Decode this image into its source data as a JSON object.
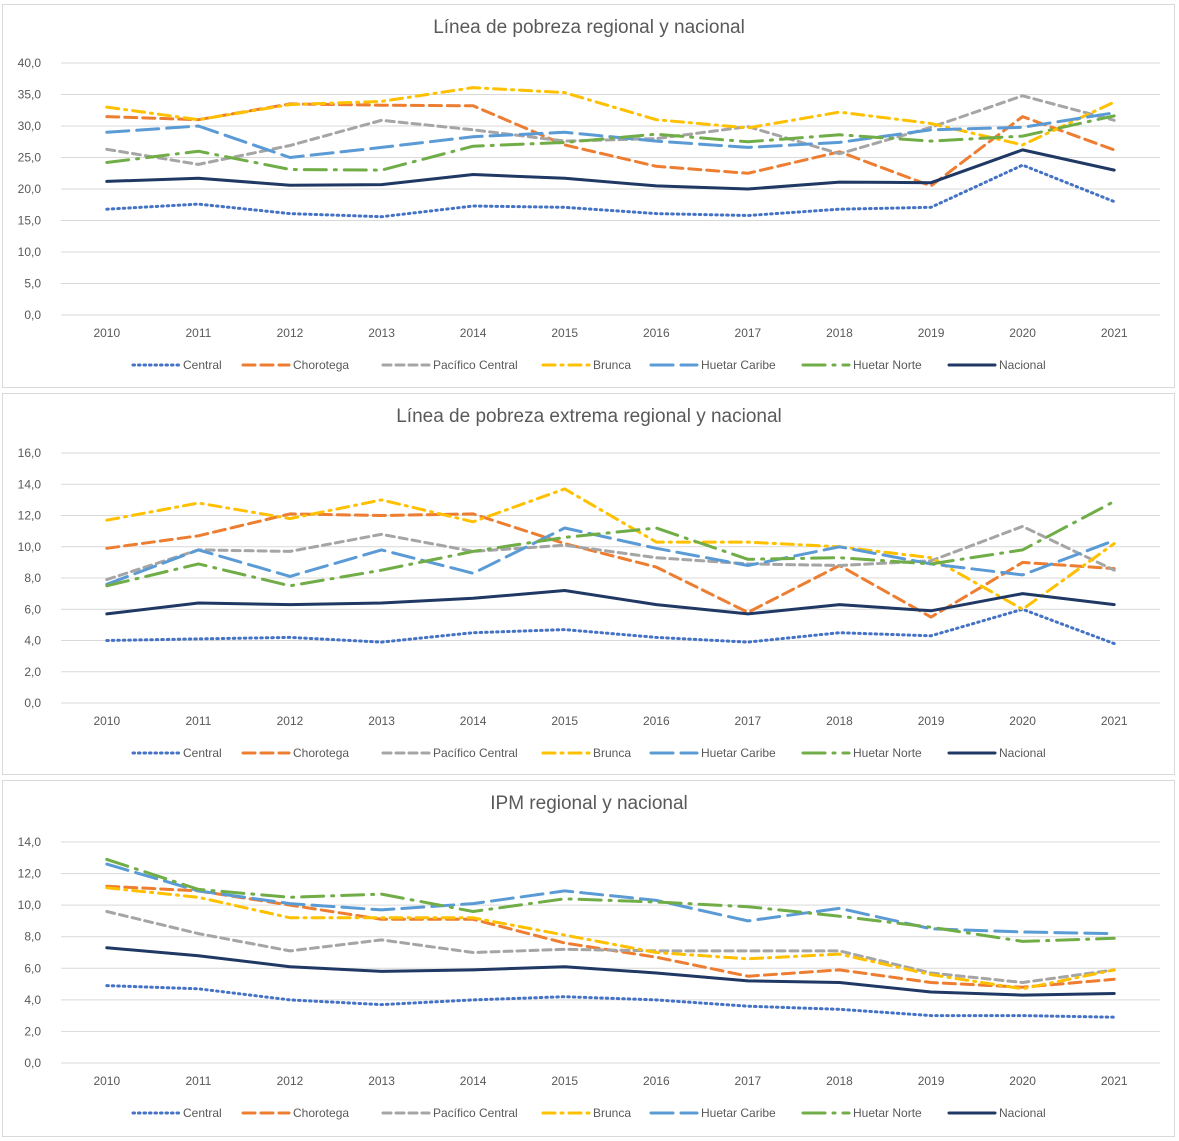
{
  "legend": [
    "Central",
    "Chorotega",
    "Pacífico Central",
    "Brunca",
    "Huetar Caribe",
    "Huetar Norte",
    "Nacional"
  ],
  "series_styles": {
    "Central": {
      "color": "#4472c4",
      "dash": "1.5,4",
      "width": 3
    },
    "Chorotega": {
      "color": "#ed7d31",
      "dash": "12,6",
      "width": 3
    },
    "Pacífico Central": {
      "color": "#a5a5a5",
      "dash": "8,5",
      "width": 3
    },
    "Brunca": {
      "color": "#ffc000",
      "dash": "12,6,2,6",
      "width": 3
    },
    "Huetar Caribe": {
      "color": "#5b9bd5",
      "dash": "22,8",
      "width": 3
    },
    "Huetar Norte": {
      "color": "#70ad47",
      "dash": "22,8,2,8",
      "width": 3
    },
    "Nacional": {
      "color": "#203864",
      "dash": "",
      "width": 3
    }
  },
  "chart_data": [
    {
      "type": "line",
      "title": "Línea de pobreza regional y nacional",
      "x": [
        "2010",
        "2011",
        "2012",
        "2013",
        "2014",
        "2015",
        "2016",
        "2017",
        "2018",
        "2019",
        "2020",
        "2021"
      ],
      "ylim": [
        0,
        40
      ],
      "yticks": [
        "0,0",
        "5,0",
        "10,0",
        "15,0",
        "20,0",
        "25,0",
        "30,0",
        "35,0",
        "40,0"
      ],
      "grid": true,
      "legend_position": "bottom",
      "series": [
        {
          "name": "Central",
          "values": [
            16.8,
            17.6,
            16.1,
            15.6,
            17.3,
            17.1,
            16.1,
            15.8,
            16.8,
            17.1,
            23.8,
            18.0
          ]
        },
        {
          "name": "Chorotega",
          "values": [
            31.5,
            31.0,
            33.5,
            33.3,
            33.2,
            27.0,
            23.6,
            22.5,
            25.9,
            20.5,
            31.5,
            26.2
          ]
        },
        {
          "name": "Pacífico Central",
          "values": [
            26.3,
            23.9,
            26.9,
            30.9,
            29.4,
            27.6,
            28.0,
            29.9,
            25.6,
            29.8,
            34.8,
            30.9
          ]
        },
        {
          "name": "Brunca",
          "values": [
            33.0,
            31.0,
            33.4,
            33.9,
            36.1,
            35.3,
            31.0,
            29.7,
            32.2,
            30.4,
            27.0,
            33.8
          ]
        },
        {
          "name": "Huetar Caribe",
          "values": [
            29.0,
            30.0,
            25.0,
            26.6,
            28.3,
            29.0,
            27.6,
            26.6,
            27.4,
            29.4,
            29.8,
            32.1
          ]
        },
        {
          "name": "Huetar Norte",
          "values": [
            24.2,
            26.0,
            23.1,
            23.0,
            26.8,
            27.4,
            28.7,
            27.5,
            28.6,
            27.6,
            28.4,
            31.6
          ]
        },
        {
          "name": "Nacional",
          "values": [
            21.2,
            21.7,
            20.6,
            20.7,
            22.3,
            21.7,
            20.5,
            20.0,
            21.1,
            21.0,
            26.2,
            23.0
          ]
        }
      ]
    },
    {
      "type": "line",
      "title": "Línea de pobreza extrema regional y nacional",
      "x": [
        "2010",
        "2011",
        "2012",
        "2013",
        "2014",
        "2015",
        "2016",
        "2017",
        "2018",
        "2019",
        "2020",
        "2021"
      ],
      "ylim": [
        0,
        16
      ],
      "yticks": [
        "0,0",
        "2,0",
        "4,0",
        "6,0",
        "8,0",
        "10,0",
        "12,0",
        "14,0",
        "16,0"
      ],
      "grid": true,
      "legend_position": "bottom",
      "series": [
        {
          "name": "Central",
          "values": [
            4.0,
            4.1,
            4.2,
            3.9,
            4.5,
            4.7,
            4.2,
            3.9,
            4.5,
            4.3,
            6.0,
            3.8
          ]
        },
        {
          "name": "Chorotega",
          "values": [
            9.9,
            10.7,
            12.1,
            12.0,
            12.1,
            10.2,
            8.7,
            5.8,
            8.8,
            5.5,
            9.0,
            8.6
          ]
        },
        {
          "name": "Pacífico Central",
          "values": [
            7.9,
            9.8,
            9.7,
            10.8,
            9.7,
            10.1,
            9.3,
            8.9,
            8.8,
            9.1,
            11.3,
            8.5
          ]
        },
        {
          "name": "Brunca",
          "values": [
            11.7,
            12.8,
            11.8,
            13.0,
            11.6,
            13.7,
            10.3,
            10.3,
            10.0,
            9.3,
            6.0,
            10.2
          ]
        },
        {
          "name": "Huetar Caribe",
          "values": [
            7.6,
            9.8,
            8.1,
            9.8,
            8.3,
            11.2,
            9.9,
            8.8,
            10.0,
            8.9,
            8.2,
            10.4
          ]
        },
        {
          "name": "Huetar Norte",
          "values": [
            7.5,
            8.9,
            7.5,
            8.5,
            9.7,
            10.6,
            11.2,
            9.2,
            9.3,
            8.9,
            9.8,
            12.9
          ]
        },
        {
          "name": "Nacional",
          "values": [
            5.7,
            6.4,
            6.3,
            6.4,
            6.7,
            7.2,
            6.3,
            5.7,
            6.3,
            5.9,
            7.0,
            6.3
          ]
        }
      ]
    },
    {
      "type": "line",
      "title": "IPM regional y nacional",
      "x": [
        "2010",
        "2011",
        "2012",
        "2013",
        "2014",
        "2015",
        "2016",
        "2017",
        "2018",
        "2019",
        "2020",
        "2021"
      ],
      "ylim": [
        0,
        14
      ],
      "yticks": [
        "0,0",
        "2,0",
        "4,0",
        "6,0",
        "8,0",
        "10,0",
        "12,0",
        "14,0"
      ],
      "grid": true,
      "legend_position": "bottom",
      "series": [
        {
          "name": "Central",
          "values": [
            4.9,
            4.7,
            4.0,
            3.7,
            4.0,
            4.2,
            4.0,
            3.6,
            3.4,
            3.0,
            3.0,
            2.9
          ]
        },
        {
          "name": "Chorotega",
          "values": [
            11.2,
            10.9,
            10.0,
            9.1,
            9.1,
            7.6,
            6.7,
            5.5,
            5.9,
            5.1,
            4.8,
            5.3
          ]
        },
        {
          "name": "Pacífico Central",
          "values": [
            9.6,
            8.2,
            7.1,
            7.8,
            7.0,
            7.2,
            7.1,
            7.1,
            7.1,
            5.7,
            5.1,
            5.9
          ]
        },
        {
          "name": "Brunca",
          "values": [
            11.1,
            10.5,
            9.2,
            9.2,
            9.2,
            8.1,
            7.0,
            6.6,
            6.9,
            5.6,
            4.7,
            5.9
          ]
        },
        {
          "name": "Huetar Caribe",
          "values": [
            12.6,
            10.9,
            10.1,
            9.7,
            10.1,
            10.9,
            10.3,
            9.0,
            9.8,
            8.5,
            8.3,
            8.2
          ]
        },
        {
          "name": "Huetar Norte",
          "values": [
            12.9,
            11.0,
            10.5,
            10.7,
            9.6,
            10.4,
            10.2,
            9.9,
            9.3,
            8.6,
            7.7,
            7.9
          ]
        },
        {
          "name": "Nacional",
          "values": [
            7.3,
            6.8,
            6.1,
            5.8,
            5.9,
            6.1,
            5.7,
            5.2,
            5.1,
            4.5,
            4.3,
            4.4
          ]
        }
      ]
    }
  ]
}
